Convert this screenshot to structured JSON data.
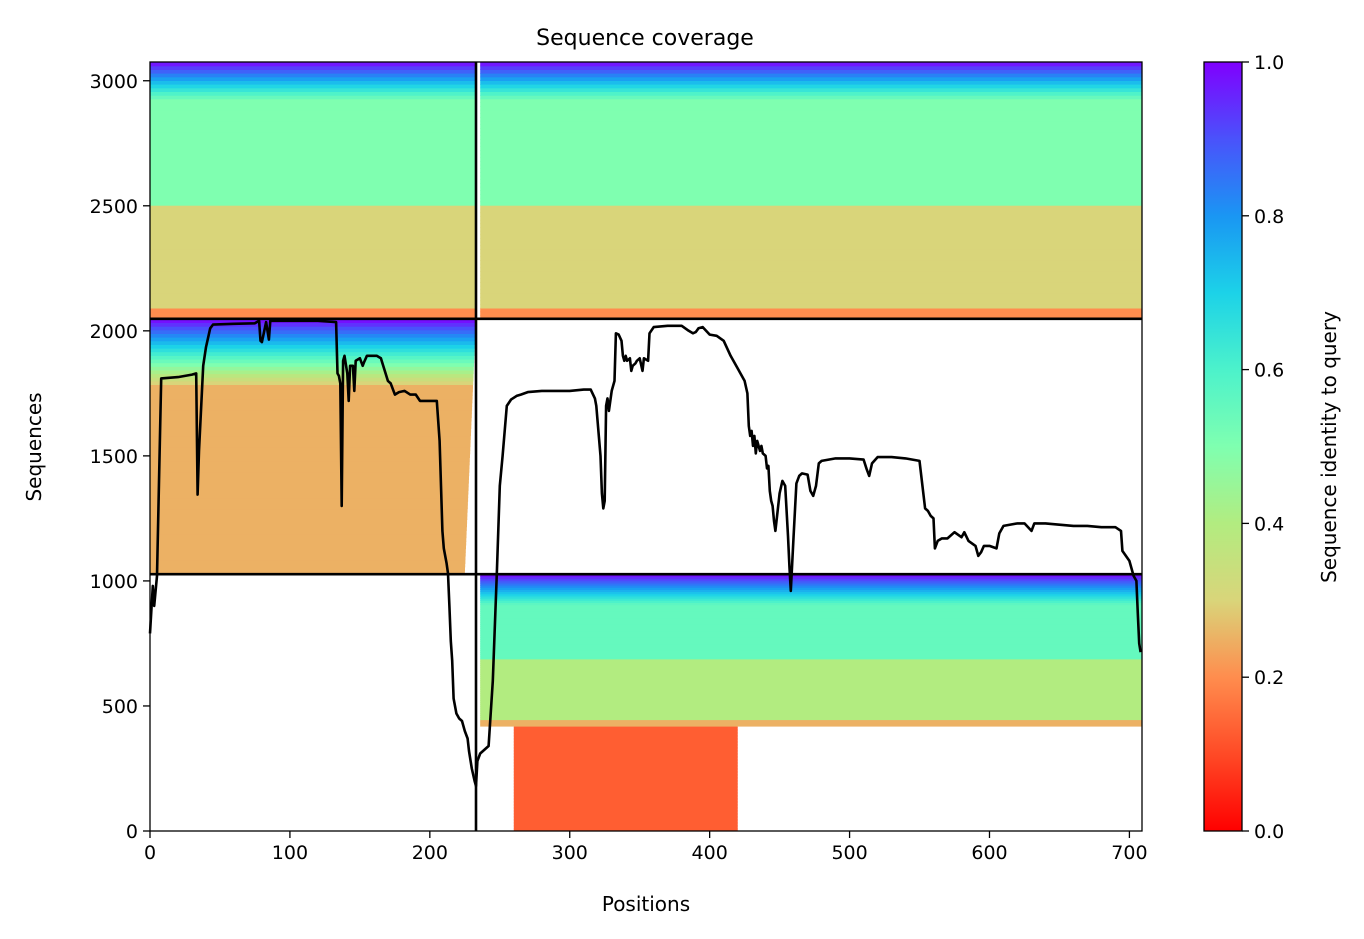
{
  "chart_data": {
    "type": "heatmap",
    "title": "Sequence coverage",
    "xlabel": "Positions",
    "ylabel": "Sequences",
    "xlim": [
      0,
      709
    ],
    "ylim": [
      0,
      3075
    ],
    "xticks": [
      0,
      100,
      200,
      300,
      400,
      500,
      600,
      700
    ],
    "yticks": [
      0,
      500,
      1000,
      1500,
      2000,
      2500,
      3000
    ],
    "grid": false,
    "colorbar": {
      "label": "Sequence identity to query",
      "range": [
        0.0,
        1.0
      ],
      "ticks": [
        "0.0",
        "0.2",
        "0.4",
        "0.6",
        "0.8",
        "1.0"
      ],
      "colormap": "rainbow_r"
    },
    "chain_boundaries": {
      "x": [
        233
      ],
      "y": [
        1027,
        2048
      ]
    },
    "series": [
      {
        "type": "line",
        "color": "#000000",
        "points": [
          [
            0,
            790
          ],
          [
            2,
            980
          ],
          [
            3,
            900
          ],
          [
            5,
            1020
          ],
          [
            8,
            1810
          ],
          [
            20,
            1815
          ],
          [
            30,
            1825
          ],
          [
            33,
            1830
          ],
          [
            34,
            1345
          ],
          [
            35,
            1520
          ],
          [
            38,
            1860
          ],
          [
            40,
            1935
          ],
          [
            43,
            2010
          ],
          [
            45,
            2025
          ],
          [
            60,
            2028
          ],
          [
            75,
            2030
          ],
          [
            78,
            2040
          ],
          [
            79,
            1960
          ],
          [
            80,
            1955
          ],
          [
            83,
            2035
          ],
          [
            85,
            1965
          ],
          [
            86,
            2040
          ],
          [
            100,
            2040
          ],
          [
            120,
            2040
          ],
          [
            133,
            2035
          ],
          [
            134,
            1830
          ],
          [
            135,
            1820
          ],
          [
            136,
            1790
          ],
          [
            137,
            1300
          ],
          [
            138,
            1880
          ],
          [
            139,
            1900
          ],
          [
            141,
            1830
          ],
          [
            142,
            1720
          ],
          [
            143,
            1860
          ],
          [
            145,
            1860
          ],
          [
            146,
            1760
          ],
          [
            147,
            1880
          ],
          [
            150,
            1890
          ],
          [
            152,
            1860
          ],
          [
            153,
            1875
          ],
          [
            155,
            1900
          ],
          [
            162,
            1900
          ],
          [
            165,
            1890
          ],
          [
            170,
            1800
          ],
          [
            172,
            1790
          ],
          [
            175,
            1745
          ],
          [
            178,
            1755
          ],
          [
            182,
            1760
          ],
          [
            186,
            1745
          ],
          [
            190,
            1745
          ],
          [
            193,
            1720
          ],
          [
            200,
            1720
          ],
          [
            205,
            1720
          ],
          [
            207,
            1560
          ],
          [
            208,
            1380
          ],
          [
            209,
            1200
          ],
          [
            210,
            1130
          ],
          [
            212,
            1070
          ],
          [
            213,
            1030
          ],
          [
            214,
            900
          ],
          [
            215,
            760
          ],
          [
            216,
            680
          ],
          [
            217,
            530
          ],
          [
            219,
            470
          ],
          [
            221,
            450
          ],
          [
            223,
            440
          ],
          [
            225,
            400
          ],
          [
            227,
            370
          ],
          [
            228,
            320
          ],
          [
            230,
            250
          ],
          [
            232,
            200
          ],
          [
            233,
            180
          ],
          [
            234,
            280
          ],
          [
            236,
            310
          ],
          [
            238,
            320
          ],
          [
            240,
            330
          ],
          [
            242,
            340
          ],
          [
            245,
            600
          ],
          [
            248,
            1050
          ],
          [
            250,
            1380
          ],
          [
            252,
            1500
          ],
          [
            255,
            1700
          ],
          [
            258,
            1725
          ],
          [
            262,
            1740
          ],
          [
            265,
            1745
          ],
          [
            270,
            1755
          ],
          [
            280,
            1760
          ],
          [
            290,
            1760
          ],
          [
            300,
            1760
          ],
          [
            310,
            1765
          ],
          [
            315,
            1765
          ],
          [
            318,
            1730
          ],
          [
            319,
            1700
          ],
          [
            322,
            1500
          ],
          [
            323,
            1350
          ],
          [
            324,
            1290
          ],
          [
            325,
            1320
          ],
          [
            326,
            1700
          ],
          [
            327,
            1730
          ],
          [
            328,
            1680
          ],
          [
            330,
            1760
          ],
          [
            332,
            1800
          ],
          [
            333,
            1990
          ],
          [
            335,
            1985
          ],
          [
            337,
            1960
          ],
          [
            338,
            1900
          ],
          [
            339,
            1880
          ],
          [
            340,
            1900
          ],
          [
            341,
            1880
          ],
          [
            343,
            1890
          ],
          [
            344,
            1840
          ],
          [
            345,
            1860
          ],
          [
            347,
            1870
          ],
          [
            348,
            1880
          ],
          [
            350,
            1890
          ],
          [
            352,
            1840
          ],
          [
            353,
            1890
          ],
          [
            356,
            1880
          ],
          [
            357,
            1990
          ],
          [
            360,
            2015
          ],
          [
            370,
            2020
          ],
          [
            380,
            2020
          ],
          [
            385,
            2000
          ],
          [
            388,
            1990
          ],
          [
            390,
            1995
          ],
          [
            392,
            2010
          ],
          [
            395,
            2015
          ],
          [
            400,
            1985
          ],
          [
            405,
            1980
          ],
          [
            410,
            1960
          ],
          [
            415,
            1900
          ],
          [
            420,
            1850
          ],
          [
            425,
            1800
          ],
          [
            427,
            1750
          ],
          [
            428,
            1620
          ],
          [
            429,
            1580
          ],
          [
            430,
            1600
          ],
          [
            431,
            1540
          ],
          [
            432,
            1580
          ],
          [
            433,
            1510
          ],
          [
            434,
            1560
          ],
          [
            436,
            1520
          ],
          [
            437,
            1540
          ],
          [
            438,
            1510
          ],
          [
            440,
            1500
          ],
          [
            441,
            1450
          ],
          [
            442,
            1460
          ],
          [
            443,
            1360
          ],
          [
            444,
            1320
          ],
          [
            445,
            1300
          ],
          [
            446,
            1240
          ],
          [
            447,
            1200
          ],
          [
            448,
            1250
          ],
          [
            450,
            1350
          ],
          [
            452,
            1400
          ],
          [
            454,
            1380
          ],
          [
            456,
            1180
          ],
          [
            457,
            1060
          ],
          [
            458,
            960
          ],
          [
            460,
            1180
          ],
          [
            462,
            1390
          ],
          [
            464,
            1420
          ],
          [
            466,
            1430
          ],
          [
            470,
            1425
          ],
          [
            472,
            1360
          ],
          [
            474,
            1340
          ],
          [
            476,
            1380
          ],
          [
            478,
            1470
          ],
          [
            480,
            1480
          ],
          [
            485,
            1485
          ],
          [
            490,
            1490
          ],
          [
            500,
            1490
          ],
          [
            510,
            1485
          ],
          [
            512,
            1450
          ],
          [
            514,
            1420
          ],
          [
            516,
            1470
          ],
          [
            520,
            1495
          ],
          [
            530,
            1495
          ],
          [
            540,
            1490
          ],
          [
            550,
            1480
          ],
          [
            554,
            1290
          ],
          [
            556,
            1280
          ],
          [
            558,
            1260
          ],
          [
            560,
            1250
          ],
          [
            561,
            1130
          ],
          [
            563,
            1160
          ],
          [
            566,
            1170
          ],
          [
            570,
            1170
          ],
          [
            575,
            1195
          ],
          [
            580,
            1175
          ],
          [
            582,
            1195
          ],
          [
            585,
            1160
          ],
          [
            590,
            1140
          ],
          [
            592,
            1100
          ],
          [
            594,
            1115
          ],
          [
            596,
            1140
          ],
          [
            600,
            1140
          ],
          [
            605,
            1130
          ],
          [
            607,
            1190
          ],
          [
            610,
            1220
          ],
          [
            620,
            1230
          ],
          [
            625,
            1230
          ],
          [
            630,
            1200
          ],
          [
            632,
            1230
          ],
          [
            640,
            1230
          ],
          [
            650,
            1225
          ],
          [
            660,
            1220
          ],
          [
            670,
            1220
          ],
          [
            680,
            1215
          ],
          [
            690,
            1215
          ],
          [
            694,
            1200
          ],
          [
            695,
            1120
          ],
          [
            700,
            1080
          ],
          [
            703,
            1020
          ],
          [
            705,
            1000
          ],
          [
            706,
            870
          ],
          [
            707,
            750
          ],
          [
            708,
            715
          ]
        ]
      }
    ]
  }
}
